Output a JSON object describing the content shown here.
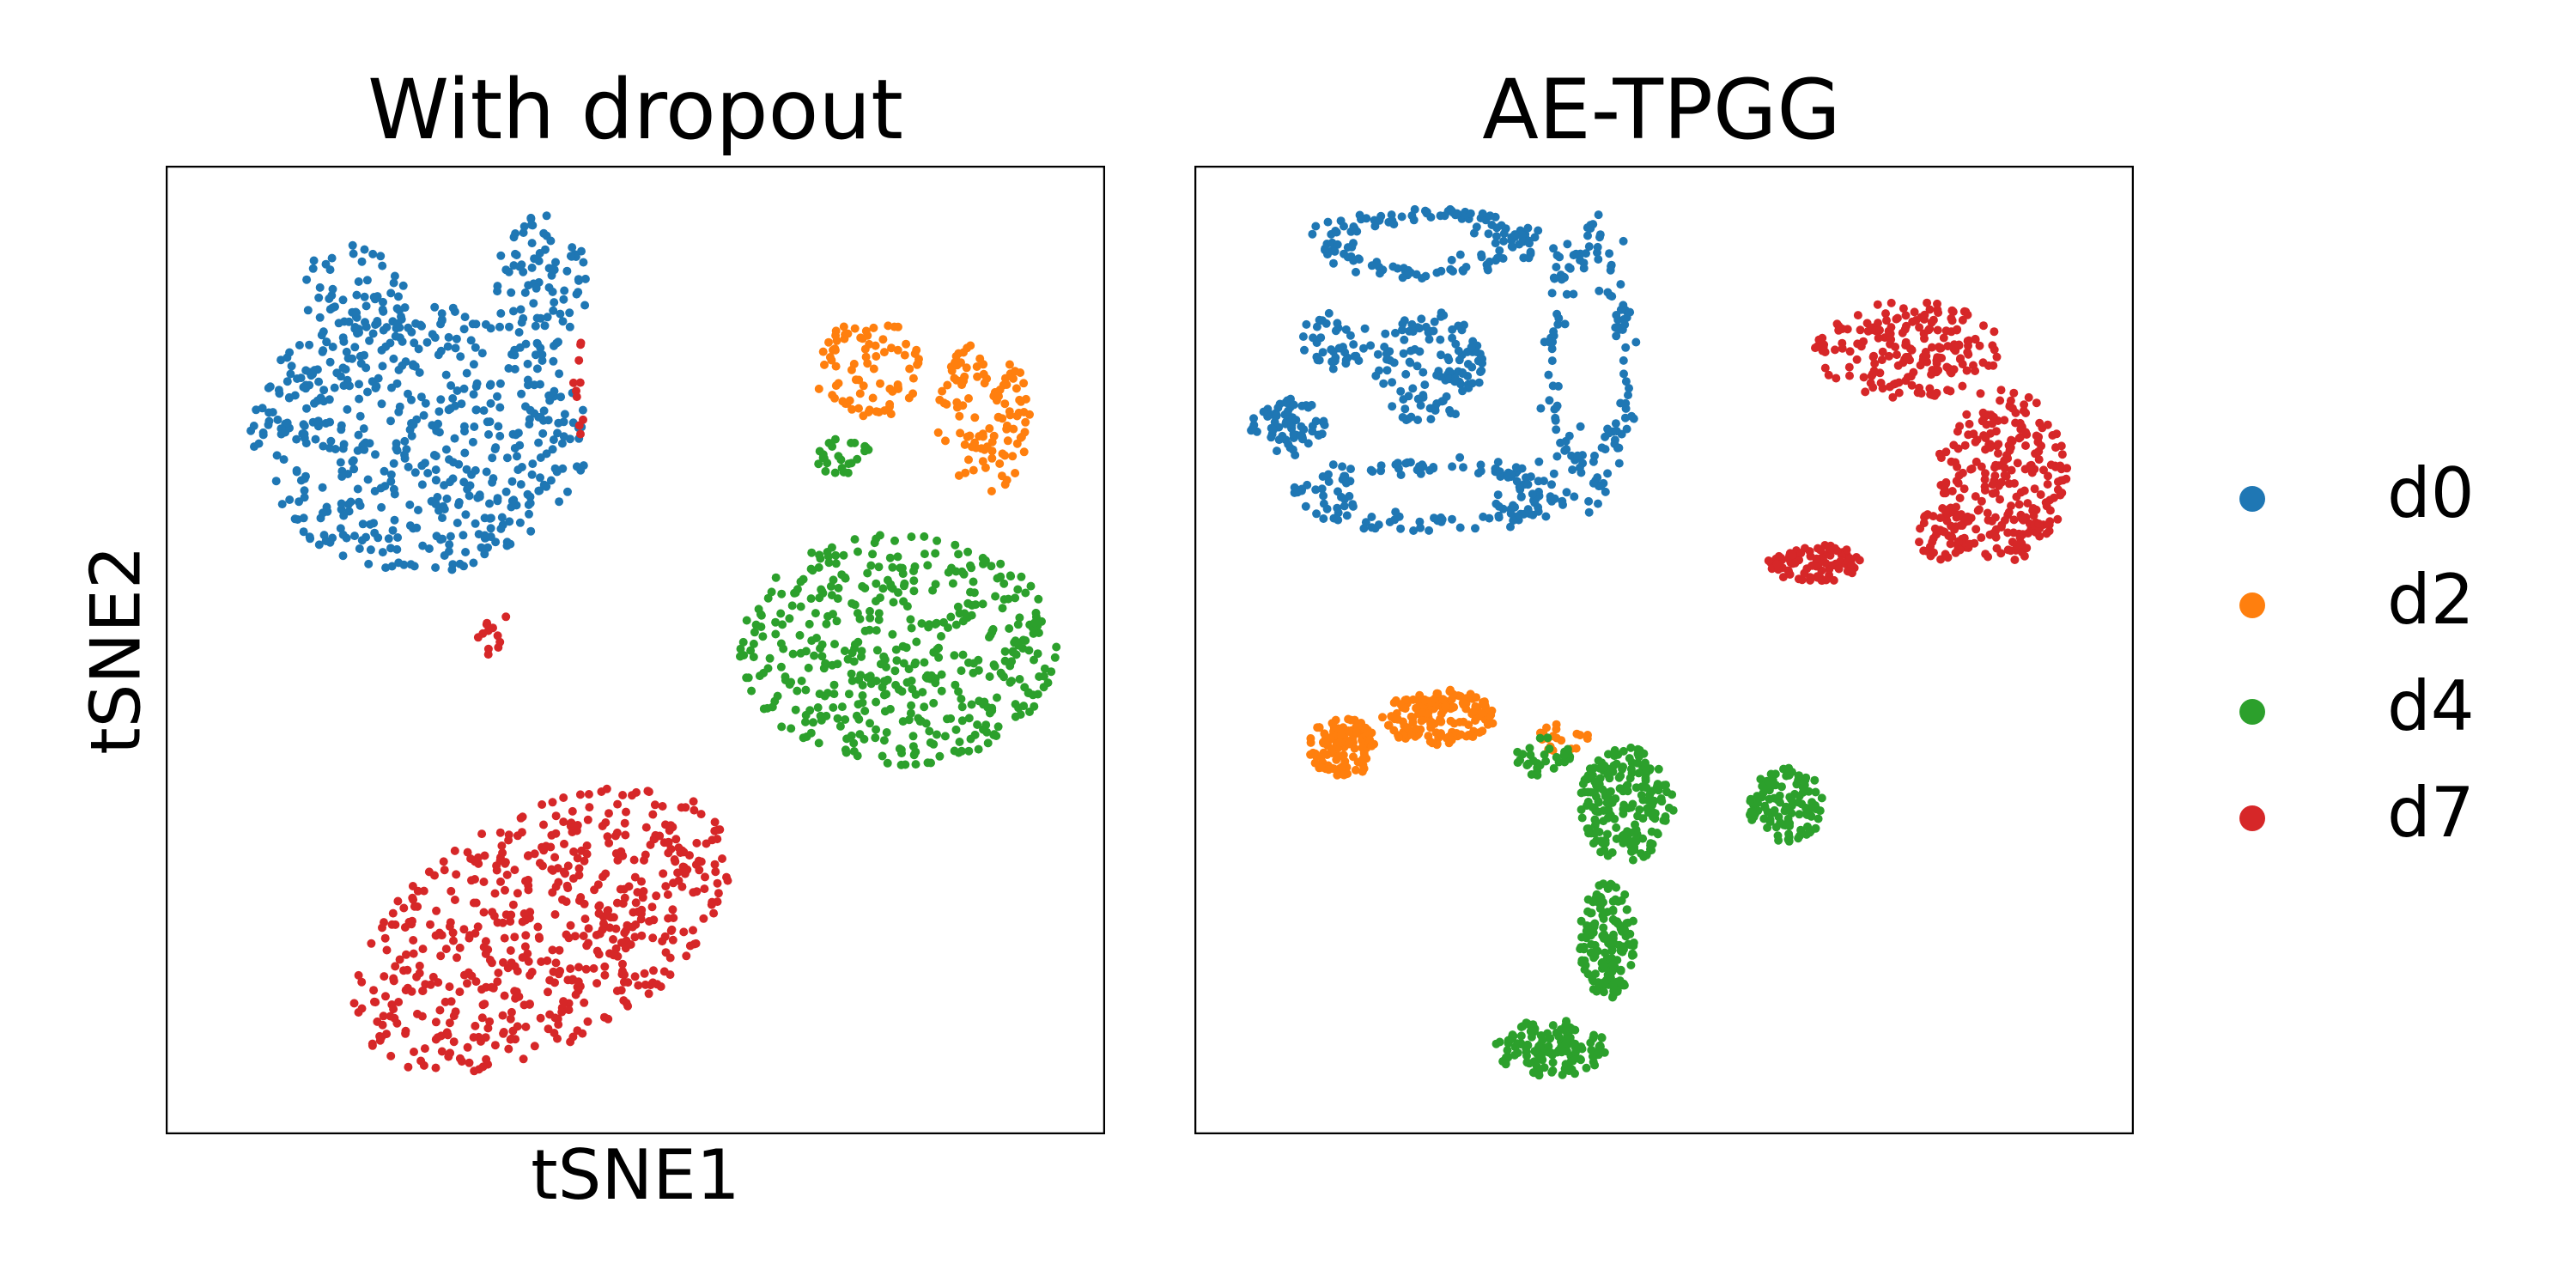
{
  "chart_data": [
    {
      "type": "scatter",
      "title": "With dropout",
      "xlabel": "tSNE1",
      "ylabel": "tSNE2",
      "xlim": [
        0,
        100
      ],
      "ylim": [
        0,
        100
      ],
      "ticks": "none",
      "grid": false,
      "series": [
        {
          "name": "d0",
          "clusters": [
            {
              "cx": 27,
              "cy": 72,
              "rx": 18,
              "ry": 14,
              "n": 520
            },
            {
              "cx": 40,
              "cy": 88,
              "rx": 5,
              "ry": 7,
              "n": 80
            },
            {
              "cx": 20,
              "cy": 86,
              "rx": 6,
              "ry": 6,
              "n": 60
            }
          ]
        },
        {
          "name": "d2",
          "clusters": [
            {
              "cx": 75,
              "cy": 79,
              "rx": 6,
              "ry": 5,
              "n": 80
            },
            {
              "cx": 87,
              "cy": 74,
              "rx": 5,
              "ry": 8,
              "n": 110
            }
          ]
        },
        {
          "name": "d4",
          "clusters": [
            {
              "cx": 78,
              "cy": 50,
              "rx": 17,
              "ry": 12,
              "n": 460
            },
            {
              "cx": 72,
              "cy": 70,
              "rx": 3,
              "ry": 2,
              "n": 25
            }
          ]
        },
        {
          "name": "d7",
          "clusters": [
            {
              "cx": 40,
              "cy": 21,
              "rx": 22,
              "ry": 12,
              "n": 560,
              "rot": 28
            },
            {
              "cx": 35,
              "cy": 52,
              "rx": 2,
              "ry": 3,
              "n": 12
            },
            {
              "cx": 44,
              "cy": 75,
              "rx": 1,
              "ry": 8,
              "n": 10
            }
          ]
        }
      ]
    },
    {
      "type": "scatter",
      "title": "AE-TPGG",
      "xlabel": "",
      "ylabel": "",
      "xlim": [
        0,
        100
      ],
      "ylim": [
        0,
        100
      ],
      "ticks": "none",
      "grid": false,
      "series": [
        {
          "name": "d0",
          "clusters": [
            {
              "cx": 25,
              "cy": 92,
              "rx": 10,
              "ry": 3,
              "n": 140,
              "ring": true
            },
            {
              "cx": 42,
              "cy": 80,
              "rx": 4,
              "ry": 12,
              "n": 140,
              "ring": true
            },
            {
              "cx": 25,
              "cy": 66,
              "rx": 12,
              "ry": 3,
              "n": 150,
              "ring": true
            },
            {
              "cx": 10,
              "cy": 73,
              "rx": 4,
              "ry": 3,
              "n": 70
            },
            {
              "cx": 25,
              "cy": 79,
              "rx": 6,
              "ry": 6,
              "n": 120
            },
            {
              "cx": 15,
              "cy": 82,
              "rx": 4,
              "ry": 3,
              "n": 40
            }
          ]
        },
        {
          "name": "d2",
          "clusters": [
            {
              "cx": 16,
              "cy": 40,
              "rx": 4,
              "ry": 3,
              "n": 120
            },
            {
              "cx": 26,
              "cy": 43,
              "rx": 6,
              "ry": 3,
              "n": 160
            },
            {
              "cx": 39,
              "cy": 41,
              "rx": 3,
              "ry": 1.5,
              "n": 20
            }
          ]
        },
        {
          "name": "d4",
          "clusters": [
            {
              "cx": 46,
              "cy": 34,
              "rx": 5,
              "ry": 6,
              "n": 200
            },
            {
              "cx": 44,
              "cy": 20,
              "rx": 3,
              "ry": 6,
              "n": 150
            },
            {
              "cx": 38,
              "cy": 9,
              "rx": 6,
              "ry": 3,
              "n": 130
            },
            {
              "cx": 63,
              "cy": 34,
              "rx": 4,
              "ry": 4,
              "n": 110
            },
            {
              "cx": 37,
              "cy": 39,
              "rx": 3,
              "ry": 2,
              "n": 30
            }
          ]
        },
        {
          "name": "d7",
          "clusters": [
            {
              "cx": 76,
              "cy": 81,
              "rx": 10,
              "ry": 5,
              "n": 190
            },
            {
              "cx": 86,
              "cy": 68,
              "rx": 7,
              "ry": 9,
              "n": 240
            },
            {
              "cx": 66,
              "cy": 59,
              "rx": 5,
              "ry": 2,
              "n": 90
            },
            {
              "cx": 80,
              "cy": 62,
              "rx": 3,
              "ry": 3,
              "n": 50
            }
          ]
        }
      ]
    }
  ],
  "legend": {
    "placement": "right",
    "items": [
      {
        "label": "d0",
        "color": "#1f77b4"
      },
      {
        "label": "d2",
        "color": "#ff7f0e"
      },
      {
        "label": "d4",
        "color": "#2ca02c"
      },
      {
        "label": "d7",
        "color": "#d62728"
      }
    ]
  }
}
